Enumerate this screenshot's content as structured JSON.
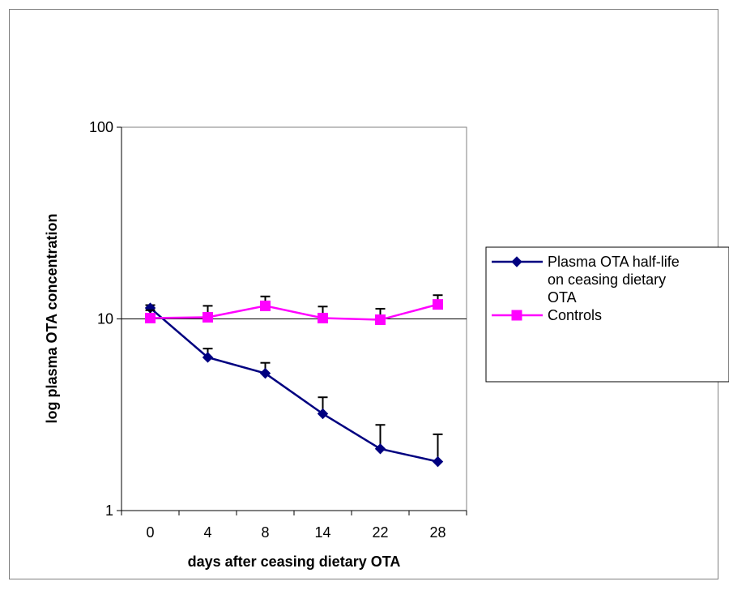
{
  "chart_data": {
    "type": "line",
    "title": "",
    "xlabel": "days after ceasing dietary OTA",
    "ylabel": "log plasma OTA concentration",
    "y_scale": "log",
    "ylim": [
      1,
      100
    ],
    "y_ticks": [
      "1",
      "10",
      "100"
    ],
    "categories": [
      "0",
      "4",
      "8",
      "14",
      "22",
      "28"
    ],
    "grid": "horizontal major gridlines",
    "legend_position": "right",
    "series": [
      {
        "name": "Plasma OTA half-life on ceasing dietary OTA",
        "legend_lines": [
          "Plasma OTA half-life",
          "on ceasing dietary",
          "OTA"
        ],
        "color": "#000080",
        "marker": "diamond",
        "values": [
          11.4,
          6.3,
          5.2,
          3.2,
          2.1,
          1.8
        ],
        "error_upper": [
          11.8,
          7.0,
          5.9,
          3.9,
          2.8,
          2.5
        ]
      },
      {
        "name": "Controls",
        "legend_lines": [
          "Controls"
        ],
        "color": "#ff00ff",
        "marker": "square",
        "values": [
          10.1,
          10.2,
          11.7,
          10.1,
          9.9,
          11.9
        ],
        "error_upper": [
          11.1,
          11.7,
          13.1,
          11.6,
          11.3,
          13.3
        ]
      }
    ]
  }
}
